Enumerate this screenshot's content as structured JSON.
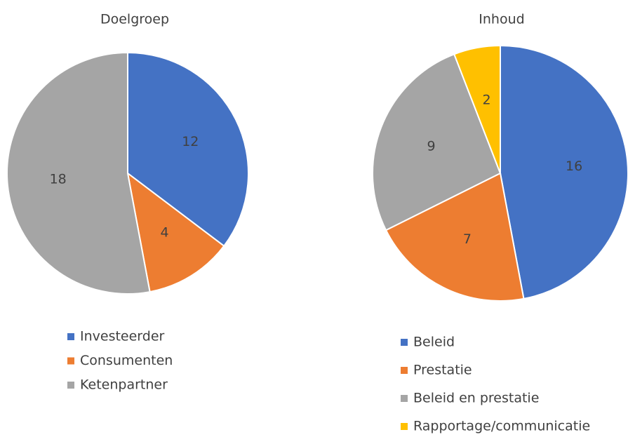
{
  "chart_data": [
    {
      "type": "pie",
      "title": "Doelgroep",
      "categories": [
        "Investeerder",
        "Consumenten",
        "Ketenpartner"
      ],
      "values": [
        12,
        4,
        18
      ],
      "colors": [
        "#4472c4",
        "#ed7d31",
        "#a5a5a5"
      ]
    },
    {
      "type": "pie",
      "title": "Inhoud",
      "categories": [
        "Beleid",
        "Prestatie",
        "Beleid en prestatie",
        "Rapportage/communicatie"
      ],
      "values": [
        16,
        7,
        9,
        2
      ],
      "colors": [
        "#4472c4",
        "#ed7d31",
        "#a5a5a5",
        "#ffc000"
      ]
    }
  ]
}
